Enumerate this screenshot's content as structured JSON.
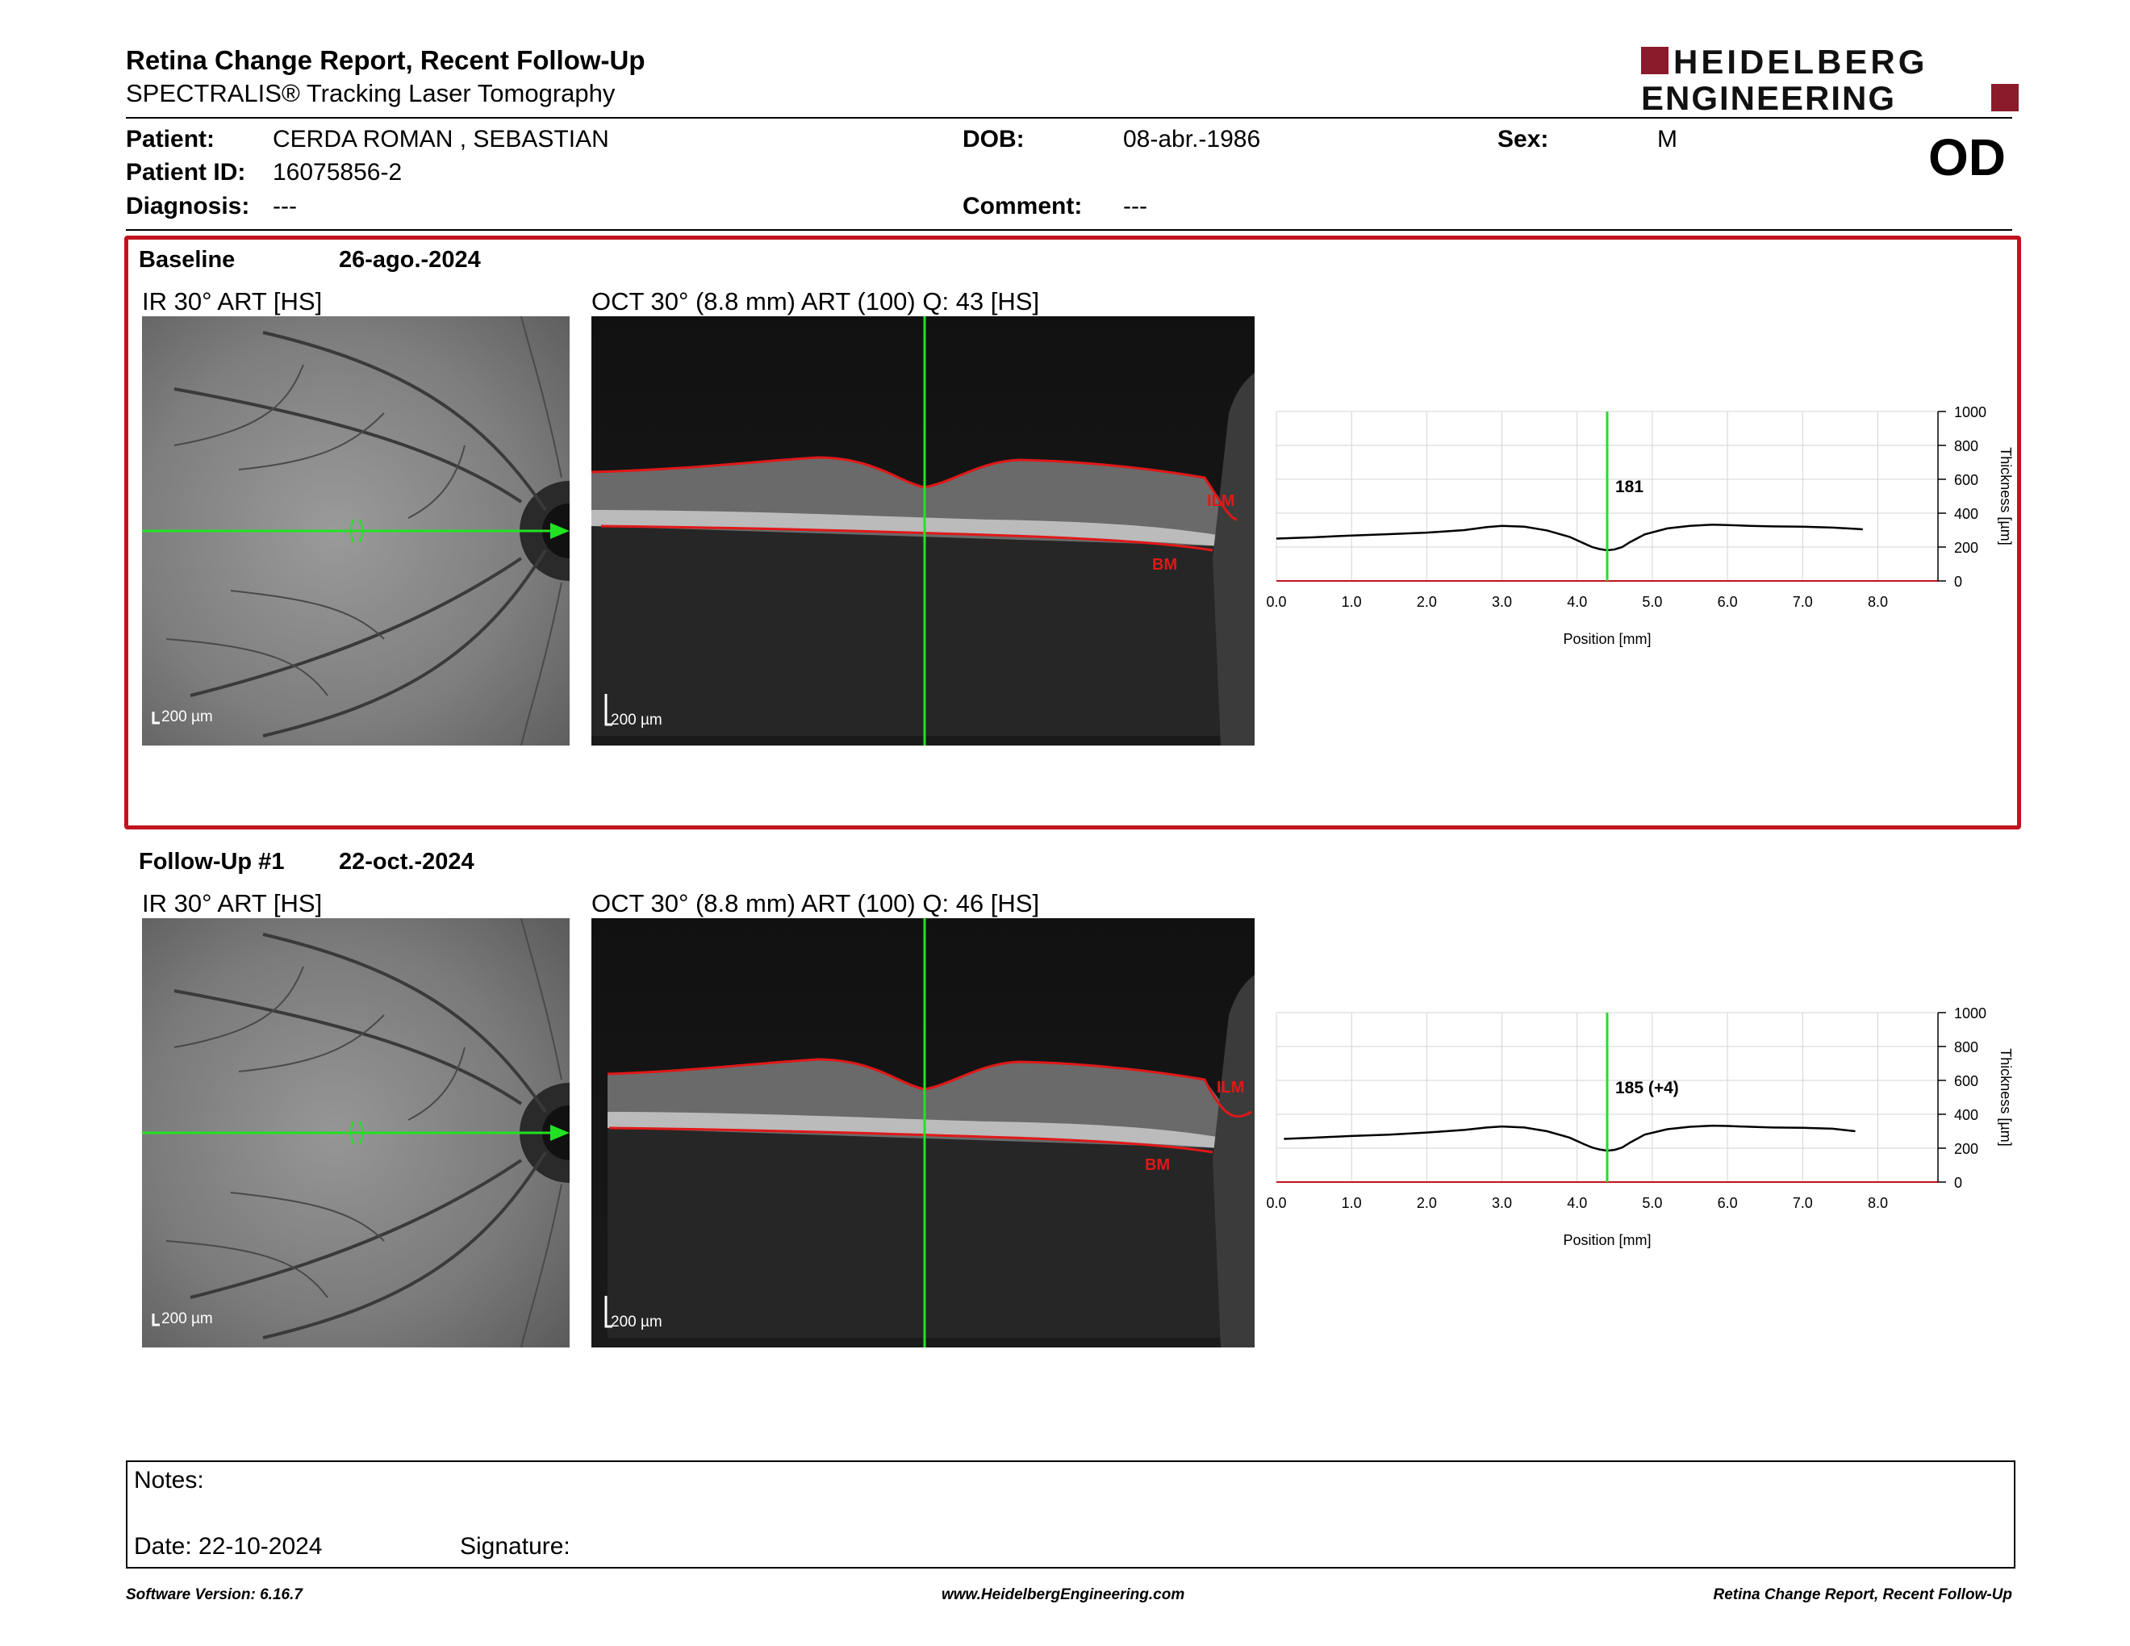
{
  "header": {
    "title": "Retina Change Report, Recent Follow-Up",
    "subtitle": "SPECTRALIS® Tracking Laser Tomography",
    "logo_line1": "HEIDELBERG",
    "logo_line2": "ENGINEERING",
    "brand_color": "#8b1a2b"
  },
  "patient": {
    "patient_label": "Patient:",
    "patient_value": "CERDA ROMAN , SEBASTIAN",
    "id_label": "Patient ID:",
    "id_value": "16075856-2",
    "diagnosis_label": "Diagnosis:",
    "diagnosis_value": "---",
    "dob_label": "DOB:",
    "dob_value": "08-abr.-1986",
    "comment_label": "Comment:",
    "comment_value": "---",
    "sex_label": "Sex:",
    "sex_value": "M",
    "eye": "OD"
  },
  "baseline": {
    "label": "Baseline",
    "date": "26-ago.-2024",
    "ir_label": "IR 30° ART [HS]",
    "oct_label": "OCT 30° (8.8 mm) ART (100) Q: 43 [HS]",
    "ir_scale": "200 µm",
    "oct_scale": "200 µm",
    "ilm": "ILM",
    "bm": "BM",
    "highlight_color": "#c0141e"
  },
  "followup": {
    "label": "Follow-Up #1",
    "date": "22-oct.-2024",
    "ir_label": "IR 30° ART [HS]",
    "oct_label": "OCT 30° (8.8 mm) ART (100) Q: 46 [HS]",
    "ir_scale": "200 µm",
    "oct_scale": "200 µm",
    "ilm": "ILM",
    "bm": "BM"
  },
  "chart_data": [
    {
      "type": "line",
      "xlabel": "Position [mm]",
      "ylabel": "Thickness [µm]",
      "xlim": [
        0,
        8.8
      ],
      "ylim": [
        0,
        1000
      ],
      "x_ticks": [
        "0.0",
        "1.0",
        "2.0",
        "3.0",
        "4.0",
        "5.0",
        "6.0",
        "7.0",
        "8.0"
      ],
      "y_ticks": [
        "0",
        "200",
        "400",
        "600",
        "800",
        "1000"
      ],
      "cursor_x": 4.4,
      "cursor_label": "181",
      "grid": true,
      "series": [
        {
          "x": [
            0.0,
            0.5,
            1.0,
            1.5,
            2.0,
            2.5,
            2.8,
            3.0,
            3.3,
            3.6,
            3.9,
            4.1,
            4.2,
            4.3,
            4.4,
            4.5,
            4.6,
            4.7,
            4.9,
            5.2,
            5.5,
            5.8,
            6.0,
            6.3,
            6.6,
            7.0,
            7.4,
            7.8
          ],
          "y": [
            250,
            258,
            268,
            276,
            285,
            300,
            318,
            325,
            320,
            298,
            260,
            220,
            200,
            188,
            181,
            186,
            200,
            228,
            275,
            310,
            325,
            332,
            330,
            325,
            322,
            320,
            315,
            305
          ]
        }
      ]
    },
    {
      "type": "line",
      "xlabel": "Position [mm]",
      "ylabel": "Thickness [µm]",
      "xlim": [
        0,
        8.8
      ],
      "ylim": [
        0,
        1000
      ],
      "x_ticks": [
        "0.0",
        "1.0",
        "2.0",
        "3.0",
        "4.0",
        "5.0",
        "6.0",
        "7.0",
        "8.0"
      ],
      "y_ticks": [
        "0",
        "200",
        "400",
        "600",
        "800",
        "1000"
      ],
      "cursor_x": 4.4,
      "cursor_label": "185 (+4)",
      "grid": true,
      "series": [
        {
          "x": [
            0.1,
            0.5,
            1.0,
            1.5,
            2.0,
            2.5,
            2.8,
            3.0,
            3.3,
            3.6,
            3.9,
            4.1,
            4.2,
            4.3,
            4.4,
            4.5,
            4.6,
            4.7,
            4.9,
            5.2,
            5.5,
            5.8,
            6.0,
            6.3,
            6.6,
            7.0,
            7.4,
            7.7
          ],
          "y": [
            255,
            262,
            272,
            280,
            292,
            308,
            322,
            328,
            322,
            300,
            262,
            222,
            204,
            192,
            185,
            190,
            204,
            232,
            280,
            312,
            326,
            333,
            331,
            326,
            322,
            320,
            315,
            300
          ]
        }
      ]
    }
  ],
  "notes": {
    "notes_label": "Notes:",
    "date_label": "Date: 22-10-2024",
    "signature_label": "Signature:"
  },
  "footer": {
    "version": "Software Version: 6.16.7",
    "url": "www.HeidelbergEngineering.com",
    "report": "Retina Change Report, Recent Follow-Up"
  }
}
